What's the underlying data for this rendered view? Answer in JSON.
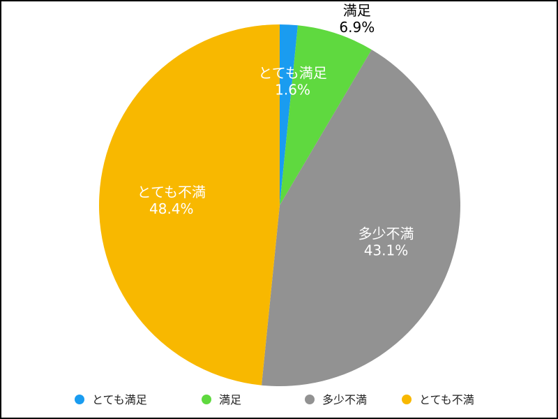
{
  "chart_data": {
    "type": "pie",
    "title": "",
    "legend_position": "bottom",
    "slices": [
      {
        "label": "とても満足",
        "value": 1.6,
        "value_label": "1.6%",
        "color": "#1a9cf0",
        "label_color": "#ffffff"
      },
      {
        "label": "満足",
        "value": 6.9,
        "value_label": "6.9%",
        "color": "#5fd93f",
        "label_color": "#000000"
      },
      {
        "label": "多少不満",
        "value": 43.1,
        "value_label": "43.1%",
        "color": "#929292",
        "label_color": "#ffffff"
      },
      {
        "label": "とても不満",
        "value": 48.4,
        "value_label": "48.4%",
        "color": "#f8b800",
        "label_color": "#ffffff"
      }
    ]
  }
}
